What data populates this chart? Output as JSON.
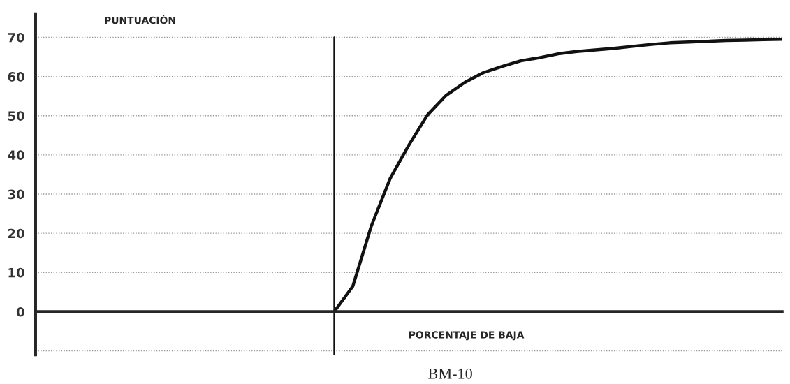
{
  "chart_data": {
    "type": "line",
    "ylabel": "PUNTUACIÓN",
    "xlabel": "PORCENTAJE DE BAJA",
    "annotations": [
      "BM-10"
    ],
    "categories": [
      null,
      null,
      null,
      null,
      null,
      null,
      null,
      null,
      null,
      null,
      null,
      null,
      null,
      null,
      null,
      null,
      null,
      null,
      null,
      null,
      null,
      null,
      null,
      null,
      null,
      null,
      null,
      null,
      null,
      null,
      null,
      null,
      null,
      null,
      null,
      null,
      null,
      null,
      null,
      null,
      null
    ],
    "series": [
      {
        "color": "#111111",
        "values": [
          null,
          null,
          null,
          null,
          null,
          null,
          null,
          null,
          null,
          null,
          null,
          null,
          null,
          null,
          null,
          null,
          0,
          6.5,
          22,
          34,
          42.5,
          50.2,
          55.2,
          58.5,
          61,
          62.6,
          64,
          64.8,
          65.8,
          66.4,
          66.8,
          67.2,
          67.7,
          68.2,
          68.6,
          68.8,
          69.0,
          69.2,
          69.3,
          69.4,
          69.5
        ]
      }
    ],
    "ylim": [
      -11,
      76
    ],
    "yticks": [
      {
        "value": -10,
        "label": null
      },
      0,
      10,
      20,
      30,
      40,
      50,
      60,
      70
    ],
    "grid": "y",
    "legend": false,
    "marker": "none",
    "line_style": "solid"
  }
}
